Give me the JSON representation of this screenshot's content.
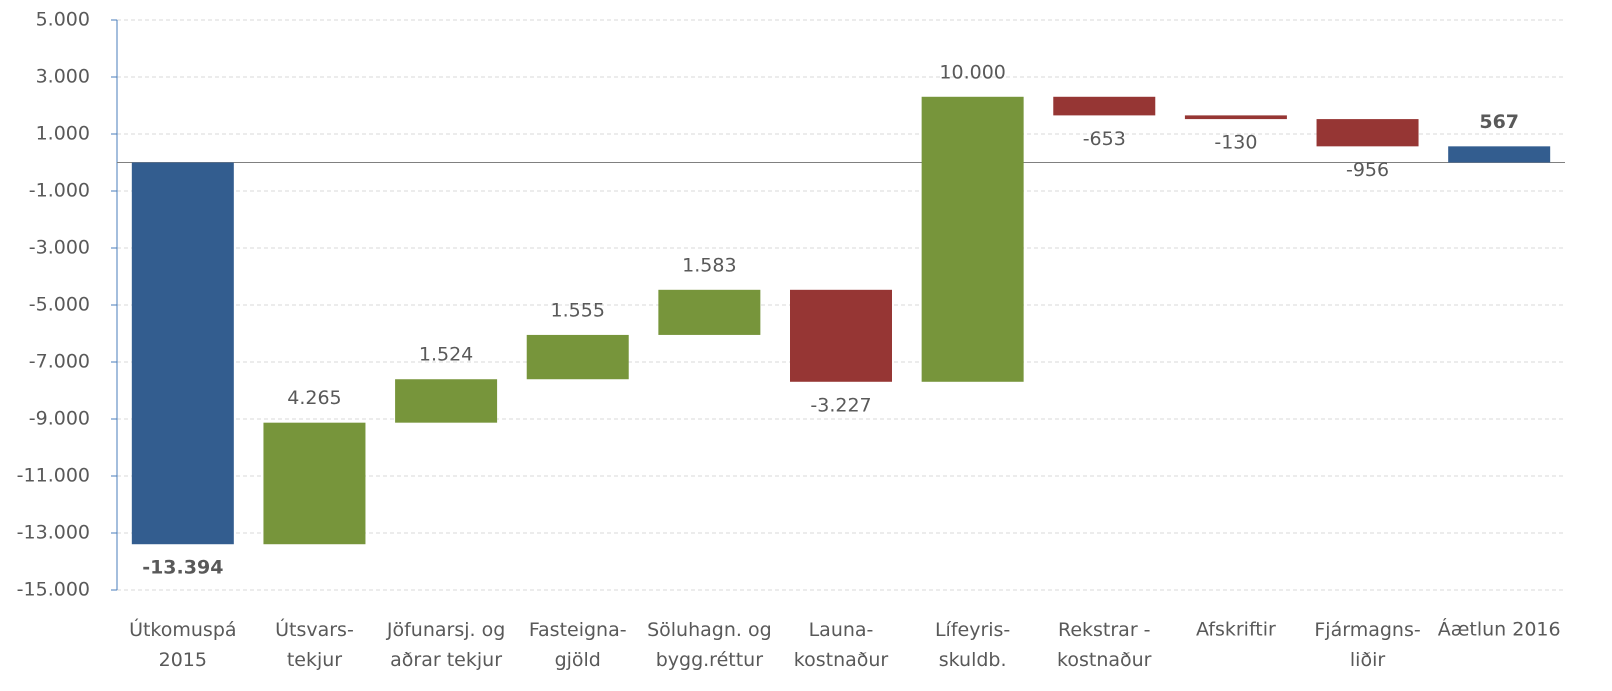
{
  "chart_data": {
    "type": "waterfall",
    "categories": [
      "Útkomuspá\n2015",
      "Útsvars-\ntekjur",
      "Jöfunarsj. og\naðrar tekjur",
      "Fasteigna-\ngjöld",
      "Söluhagn. og\nbygg.réttur",
      "Launa-\nkostnaður",
      "Lífeyris-\nskuldb.",
      "Rekstrar -\nkostnaður",
      "Afskriftir",
      "Fjármagns-\nliðir",
      "Áætlun 2016"
    ],
    "values": [
      -13394,
      4265,
      1524,
      1555,
      1583,
      -3227,
      10000,
      -653,
      -130,
      -956,
      567
    ],
    "value_labels": [
      "-13.394",
      "4.265",
      "1.524",
      "1.555",
      "1.583",
      "-3.227",
      "10.000",
      "-653",
      "-130",
      "-956",
      "567"
    ],
    "is_total": [
      true,
      false,
      false,
      false,
      false,
      false,
      false,
      false,
      false,
      false,
      true
    ],
    "colors": {
      "total": "#335d8f",
      "increase": "#77953b",
      "decrease": "#963634"
    },
    "ylim": [
      -15000,
      5000
    ],
    "yticks": [
      {
        "value": 5000,
        "label": "5.000"
      },
      {
        "value": 3000,
        "label": "3.000"
      },
      {
        "value": 1000,
        "label": "1.000"
      },
      {
        "value": -1000,
        "label": "-1.000"
      },
      {
        "value": -3000,
        "label": "-3.000"
      },
      {
        "value": -5000,
        "label": "-5.000"
      },
      {
        "value": -7000,
        "label": "-7.000"
      },
      {
        "value": -9000,
        "label": "-9.000"
      },
      {
        "value": -11000,
        "label": "-11.000"
      },
      {
        "value": -13000,
        "label": "-13.000"
      },
      {
        "value": -15000,
        "label": "-15.000"
      }
    ],
    "grid": true
  }
}
